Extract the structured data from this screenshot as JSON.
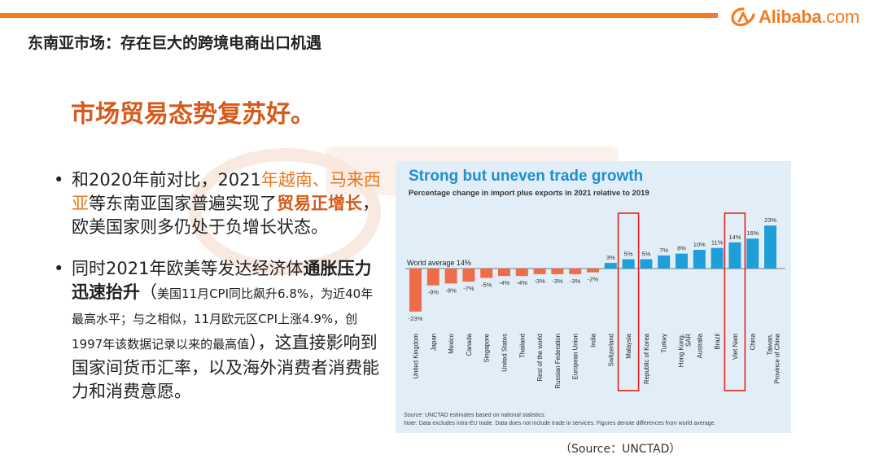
{
  "header": {
    "page_title": "东南亚市场：存在巨大的跨境电商出口机遇",
    "logo_name": "Alibaba",
    "logo_suffix": ".com",
    "accent_color": "#f47b20"
  },
  "section_heading": "市场贸易态势复苏好。",
  "bullets": [
    {
      "p1": "和2020年前对比，2021",
      "p2": "年越南、马来西亚",
      "p3": "等东南亚国家普遍实现了",
      "p4": "贸易正增长",
      "p5": "，欧美国家则多仍处于负增长状态。"
    },
    {
      "p1": "同时2021年欧美等发达经济体",
      "p2": "通胀压力迅速抬升",
      "p3": "（",
      "p4": "美国11月CPI同比飙升6.8%，为近40年最高水平；与之相似，11月欧元区CPI上涨4.9%，创1997年该数据记录以来的最高值",
      "p5": "），这直接影响到国家间货币汇率，以及海外消费者消费能力和消费意愿。"
    }
  ],
  "source_note": "（Source：UNCTAD）",
  "chart_data": {
    "type": "bar",
    "title": "Strong but uneven trade growth",
    "subtitle": "Percentage change in import plus exports in 2021 relative to 2019",
    "reference_line": {
      "label": "World average 14%",
      "value": 14
    },
    "categories": [
      "United Kingdom",
      "Japan",
      "Mexico",
      "Canada",
      "Singapore",
      "United States",
      "Thailand",
      "Rest of the world",
      "Russian Federation",
      "European Union",
      "India",
      "Switzerland",
      "Malaysia",
      "Republic of Korea",
      "Turkey",
      "Hong Kong, SAR",
      "Australia",
      "Brazil",
      "Viet Nam",
      "China",
      "Taiwan, Province of China"
    ],
    "values": [
      -23,
      -9,
      -8,
      -7,
      -5,
      -4,
      -4,
      -3,
      -3,
      -3,
      -2,
      3,
      5,
      5,
      7,
      8,
      10,
      11,
      14,
      16,
      23
    ],
    "value_labels": [
      "-23%",
      "-9%",
      "-8%",
      "-7%",
      "-5%",
      "-4%",
      "-4%",
      "-3%",
      "-3%",
      "-3%",
      "-2%",
      "3%",
      "5%",
      "5%",
      "7%",
      "8%",
      "10%",
      "11%",
      "14%",
      "16%",
      "23%"
    ],
    "description": "Values denote differences from world average; negative bars shown in orange, positive in blue.",
    "highlighted": [
      "Malaysia",
      "Viet Nam"
    ],
    "colors": {
      "negative": "#ef6c4a",
      "positive": "#1f9fd8",
      "highlight_box": "#e2231a",
      "panel_bg": "#e2eef7"
    },
    "source_line": "UNCTAD estimates based on national statistics.",
    "source_label": "Source:",
    "note_label": "Note:",
    "note_line": "Data excludes intra-EU trade. Data does not include trade in services. Figures denote differences from world average."
  }
}
